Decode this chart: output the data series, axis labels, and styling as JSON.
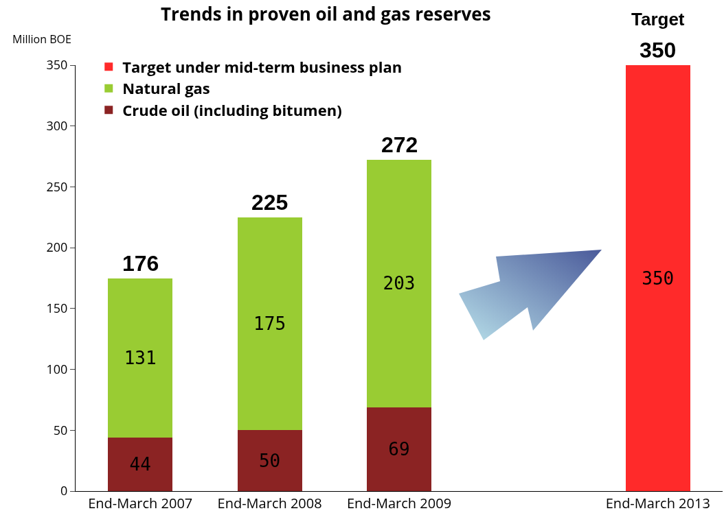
{
  "chart_data": {
    "type": "bar",
    "title": "Trends in proven oil and gas reserves",
    "ylabel": "Million BOE",
    "categories": [
      "End-March 2007",
      "End-March 2008",
      "End-March 2009",
      null,
      "End-March 2013"
    ],
    "series": [
      {
        "name": "Crude oil (including bitumen)",
        "color": "#8b2323",
        "values": [
          44,
          50,
          69,
          null,
          null
        ]
      },
      {
        "name": "Natural gas",
        "color": "#99cc33",
        "values": [
          131,
          175,
          203,
          null,
          null
        ]
      },
      {
        "name": "Target under mid-term business plan",
        "color": "#ff2a2a",
        "values": [
          null,
          null,
          null,
          null,
          350
        ]
      }
    ],
    "stacked": true,
    "data_labels": true,
    "totals": [
      "176",
      "225",
      "272",
      null,
      "350"
    ],
    "annotations": [
      {
        "text": "Target",
        "x": "End-March 2013",
        "y": 350
      }
    ],
    "ylim": [
      0,
      350
    ],
    "yticks": [
      0,
      50,
      100,
      150,
      200,
      250,
      300,
      350
    ],
    "grid": false,
    "legend": "top left"
  }
}
